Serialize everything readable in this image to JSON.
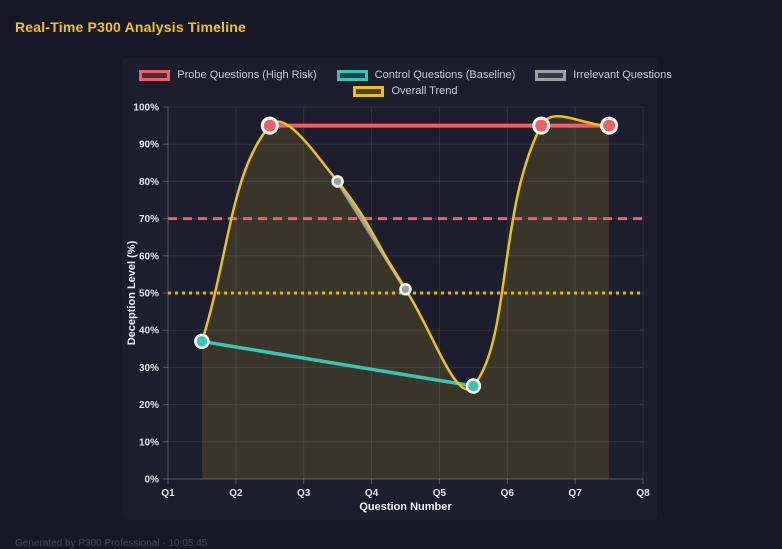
{
  "header": {
    "title": "Real-Time P300 Analysis Timeline"
  },
  "footer": {
    "text": "Generated by P300 Professional - 10:05:45"
  },
  "colors": {
    "page_bg": "#161827",
    "panel_bg": "#1c1e2d",
    "title_color": "#f2c318",
    "footer_color": "#454a5e",
    "legend_text": "#c7c9d3",
    "tick_text": "#e0e2e9",
    "axis_title_text": "#eef0f5",
    "grid": "rgba(255,255,255,0.09)",
    "axis_line": "rgba(255,255,255,0.25)",
    "probe_red": "#ef5f63",
    "control_teal": "#36c6b5",
    "irrelevant_gray": "#9d9fa6",
    "trend_yellow": "#e9c319",
    "threshold_red": "#ef5f63",
    "threshold_gold": "#e2b607",
    "point_border": "#ffffff"
  },
  "chart_data": {
    "type": "line",
    "title": "Real-Time P300 Analysis Timeline",
    "xlabel": "Question Number",
    "ylabel": "Deception Level (%)",
    "x_tick_labels": [
      "Q1",
      "Q2",
      "Q3",
      "Q4",
      "Q5",
      "Q6",
      "Q7",
      "Q8"
    ],
    "xlim": [
      1,
      8
    ],
    "ylim": [
      0,
      100
    ],
    "y_tick_step": 10,
    "y_tick_suffix": "%",
    "grid": true,
    "legend_position": "top",
    "legend_rows": [
      [
        0,
        1,
        2
      ],
      [
        3
      ]
    ],
    "series": [
      {
        "name": "Probe Questions (High Risk)",
        "color": "#ef5f63",
        "x": [
          2.5,
          6.5,
          7.5
        ],
        "values": [
          95,
          95,
          95
        ],
        "line_width": 4,
        "point_radius": 7.5,
        "point_border_width": 3,
        "smooth": false,
        "fill": false
      },
      {
        "name": "Control Questions (Baseline)",
        "color": "#36c6b5",
        "x": [
          1.5,
          5.5
        ],
        "values": [
          37,
          25
        ],
        "line_width": 3.5,
        "point_radius": 6.5,
        "point_border_width": 2.5,
        "smooth": false,
        "fill": false
      },
      {
        "name": "Irrelevant Questions",
        "color": "#9d9fa6",
        "x": [
          3.5,
          4.5
        ],
        "values": [
          80,
          51
        ],
        "line_width": 3.5,
        "point_radius": 5,
        "point_border_width": 2.5,
        "smooth": false,
        "fill": false
      },
      {
        "name": "Overall Trend",
        "color": "#e9c319",
        "x": [
          1.5,
          2.5,
          3.5,
          4.5,
          5.5,
          6.5,
          7.5
        ],
        "values": [
          37,
          95,
          80,
          51,
          25,
          95,
          95
        ],
        "line_width": 2.5,
        "point_radius": 0,
        "point_border_width": 0,
        "smooth": true,
        "tension": 0.4,
        "fill": true,
        "fill_color": "rgba(233,195,25,0.14)"
      }
    ],
    "thresholds": [
      {
        "value": 70,
        "color": "#ef5f63",
        "dash": [
          9,
          6
        ],
        "line_width": 3
      },
      {
        "value": 50,
        "color": "#e2b607",
        "dash": [
          3,
          4
        ],
        "line_width": 3
      }
    ]
  }
}
